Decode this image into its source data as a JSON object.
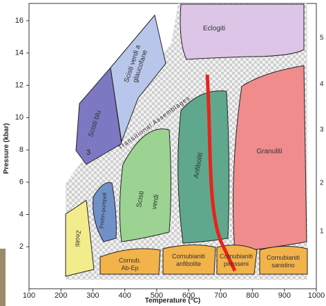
{
  "axes": {
    "x_label": "Temperature (°C)",
    "y_label": "Pressure (kbar)",
    "xlim": [
      100,
      1000
    ],
    "xticks": [
      100,
      200,
      300,
      400,
      500,
      600,
      700,
      800,
      900,
      1000
    ],
    "ylim": [
      0,
      17
    ],
    "yticks": [
      2,
      4,
      6,
      8,
      10,
      12,
      14,
      16
    ],
    "right_ticks": [
      5,
      4,
      3,
      2,
      1
    ]
  },
  "regions": [
    {
      "label": [
        "Eclogiti"
      ]
    },
    {
      "label": [
        "Scisti verdi a",
        "glaucofane"
      ]
    },
    {
      "label": [
        "Scisti blu"
      ]
    },
    {
      "label": [
        "Granuliti"
      ]
    },
    {
      "label": [
        "Anfiboliti"
      ]
    },
    {
      "label": [
        "Scisti",
        "verdi"
      ]
    },
    {
      "label": [
        "Prehn-pumpell"
      ]
    },
    {
      "label": [
        "Zeoliti"
      ]
    },
    {
      "label": [
        "Cornub.",
        "Ab-Ep"
      ]
    },
    {
      "label": [
        "Cornubianiti",
        "anfibolite"
      ]
    },
    {
      "label": [
        "Cornubianiti",
        "pirosseni"
      ]
    },
    {
      "label": [
        "Cornubianiti",
        "sanidino"
      ]
    }
  ],
  "annotation": "Transitional Assemblages",
  "marker": "3"
}
